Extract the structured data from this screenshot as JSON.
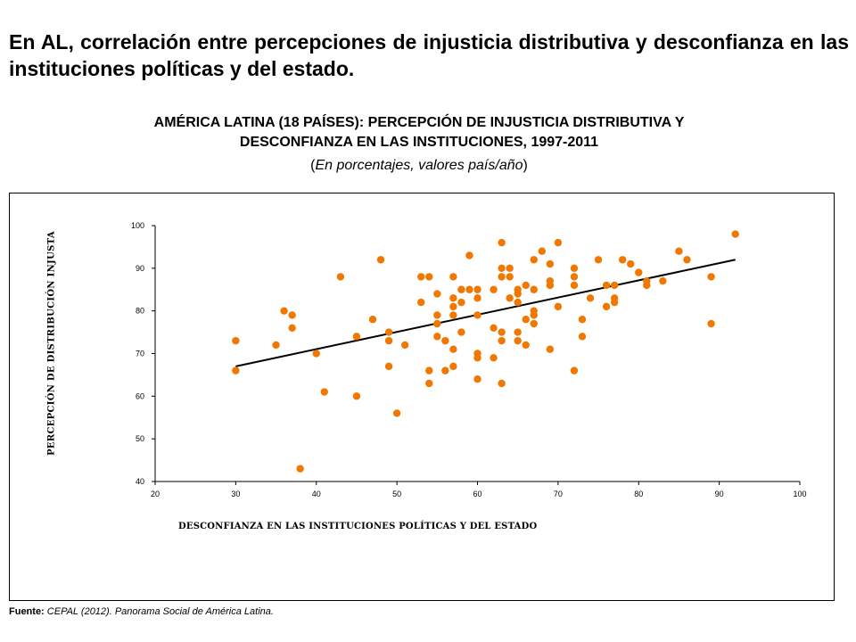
{
  "headline": "En AL, correlación entre percepciones de injusticia distributiva y desconfianza en las instituciones políticas y del estado.",
  "source": {
    "label": "Fuente:",
    "text": "CEPAL (2012). Panorama Social de América Latina."
  },
  "chart_data": {
    "type": "scatter",
    "title_line1": "AMÉRICA LATINA (18 PAÍSES): PERCEPCIÓN DE INJUSTICIA DISTRIBUTIVA Y",
    "title_line2": "DESCONFIANZA EN LAS INSTITUCIONES, 1997-2011",
    "subtitle_open": "(",
    "subtitle_italic": "En porcentajes, valores país/año",
    "subtitle_close": ")",
    "xlabel": "DESCONFIANZA EN LAS INSTITUCIONES POLÍTICAS Y DEL ESTADO",
    "ylabel": "PERCEPCIÓN DE DISTRIBUCIÓN INJUSTA",
    "xlim": [
      20,
      100
    ],
    "ylim": [
      40,
      100
    ],
    "xticks": [
      20,
      30,
      40,
      50,
      60,
      70,
      80,
      90,
      100
    ],
    "yticks": [
      40,
      50,
      60,
      70,
      80,
      90,
      100
    ],
    "grid": false,
    "marker_color": "#f07800",
    "trendline": {
      "x": [
        30,
        92
      ],
      "y": [
        67,
        92
      ],
      "color": "#000000"
    },
    "points": [
      [
        30,
        73
      ],
      [
        30,
        66
      ],
      [
        35,
        72
      ],
      [
        36,
        80
      ],
      [
        37,
        79
      ],
      [
        37,
        76
      ],
      [
        38,
        43
      ],
      [
        40,
        70
      ],
      [
        41,
        61
      ],
      [
        43,
        88
      ],
      [
        45,
        74
      ],
      [
        45,
        60
      ],
      [
        47,
        78
      ],
      [
        48,
        92
      ],
      [
        49,
        75
      ],
      [
        49,
        73
      ],
      [
        49,
        67
      ],
      [
        50,
        56
      ],
      [
        51,
        72
      ],
      [
        53,
        88
      ],
      [
        53,
        82
      ],
      [
        54,
        88
      ],
      [
        54,
        66
      ],
      [
        54,
        63
      ],
      [
        55,
        84
      ],
      [
        55,
        79
      ],
      [
        55,
        77
      ],
      [
        55,
        74
      ],
      [
        56,
        73
      ],
      [
        56,
        66
      ],
      [
        57,
        88
      ],
      [
        57,
        83
      ],
      [
        57,
        81
      ],
      [
        57,
        79
      ],
      [
        57,
        71
      ],
      [
        57,
        67
      ],
      [
        58,
        85
      ],
      [
        58,
        82
      ],
      [
        58,
        75
      ],
      [
        59,
        93
      ],
      [
        59,
        85
      ],
      [
        60,
        85
      ],
      [
        60,
        83
      ],
      [
        60,
        79
      ],
      [
        60,
        70
      ],
      [
        60,
        69
      ],
      [
        60,
        64
      ],
      [
        62,
        85
      ],
      [
        62,
        76
      ],
      [
        62,
        69
      ],
      [
        63,
        96
      ],
      [
        63,
        90
      ],
      [
        63,
        88
      ],
      [
        63,
        75
      ],
      [
        63,
        73
      ],
      [
        63,
        63
      ],
      [
        64,
        90
      ],
      [
        64,
        88
      ],
      [
        64,
        83
      ],
      [
        65,
        85
      ],
      [
        65,
        84
      ],
      [
        65,
        82
      ],
      [
        65,
        75
      ],
      [
        65,
        73
      ],
      [
        66,
        86
      ],
      [
        66,
        78
      ],
      [
        66,
        72
      ],
      [
        67,
        92
      ],
      [
        67,
        85
      ],
      [
        67,
        80
      ],
      [
        67,
        79
      ],
      [
        67,
        77
      ],
      [
        68,
        94
      ],
      [
        69,
        91
      ],
      [
        69,
        87
      ],
      [
        69,
        86
      ],
      [
        69,
        71
      ],
      [
        70,
        96
      ],
      [
        70,
        81
      ],
      [
        72,
        90
      ],
      [
        72,
        88
      ],
      [
        72,
        86
      ],
      [
        72,
        66
      ],
      [
        73,
        78
      ],
      [
        73,
        74
      ],
      [
        74,
        83
      ],
      [
        75,
        92
      ],
      [
        76,
        86
      ],
      [
        76,
        81
      ],
      [
        77,
        86
      ],
      [
        77,
        83
      ],
      [
        77,
        82
      ],
      [
        78,
        92
      ],
      [
        79,
        91
      ],
      [
        80,
        89
      ],
      [
        81,
        87
      ],
      [
        81,
        86
      ],
      [
        83,
        87
      ],
      [
        85,
        94
      ],
      [
        86,
        92
      ],
      [
        89,
        88
      ],
      [
        89,
        77
      ],
      [
        92,
        98
      ]
    ]
  }
}
